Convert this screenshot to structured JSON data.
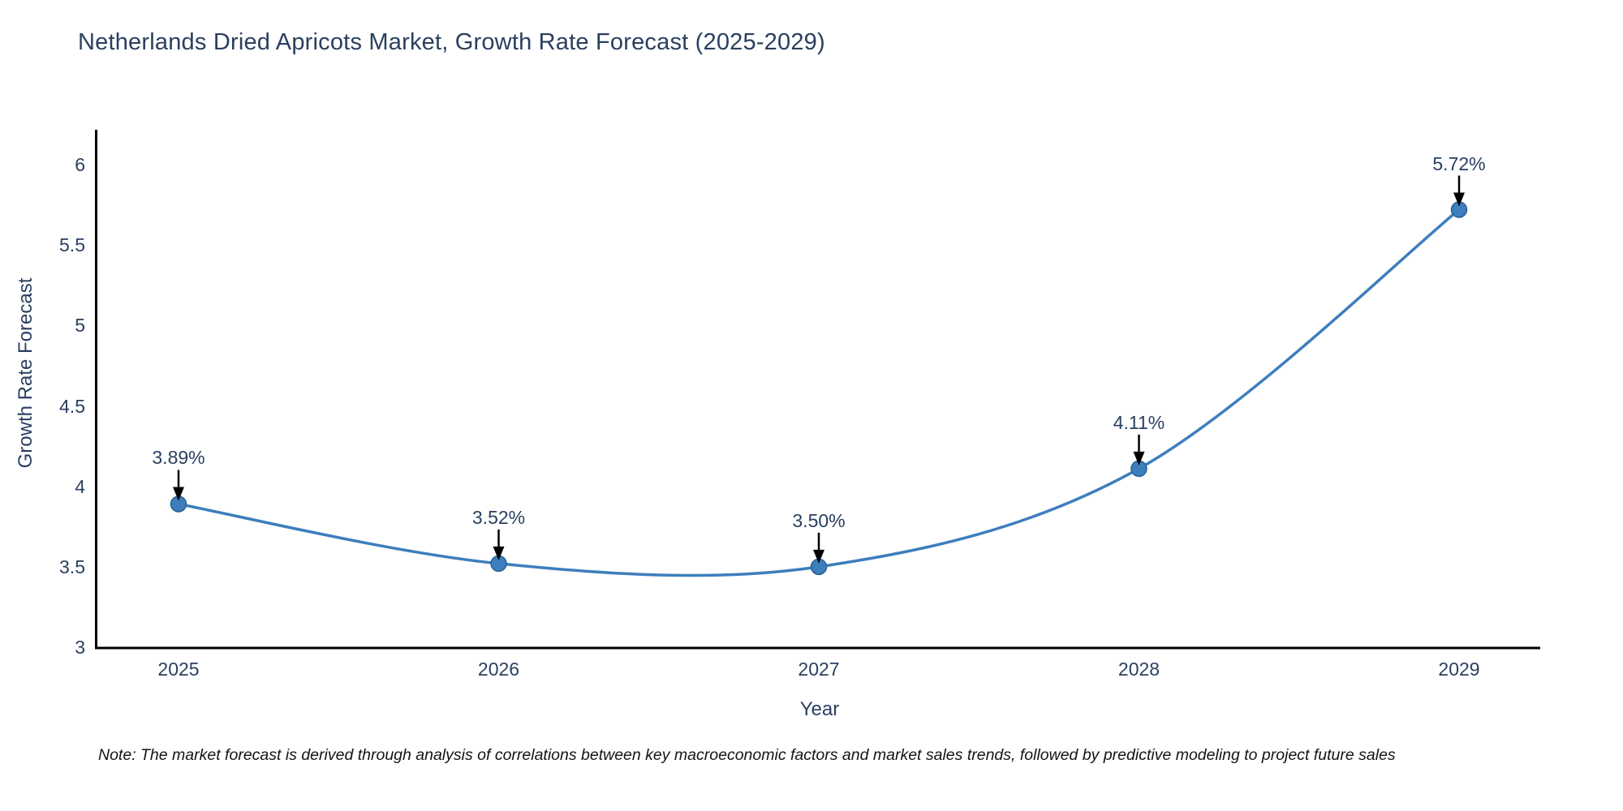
{
  "title": "Netherlands Dried Apricots Market, Growth Rate Forecast (2025-2029)",
  "note": "Note: The market forecast is derived through analysis of correlations between key macroeconomic factors and market sales trends, followed by predictive modeling to project future sales",
  "chart_data": {
    "type": "line",
    "title": "Netherlands Dried Apricots Market, Growth Rate Forecast (2025-2029)",
    "xlabel": "Year",
    "ylabel": "Growth Rate Forecast",
    "x": [
      2025,
      2026,
      2027,
      2028,
      2029
    ],
    "series": [
      {
        "name": "Growth Rate Forecast",
        "values": [
          3.89,
          3.52,
          3.5,
          4.11,
          5.72
        ]
      }
    ],
    "data_labels": [
      "3.89%",
      "3.52%",
      "3.50%",
      "4.11%",
      "5.72%"
    ],
    "x_tick_labels": [
      "2025",
      "2026",
      "2027",
      "2028",
      "2029"
    ],
    "y_tick_labels": [
      "3",
      "3.5",
      "4",
      "4.5",
      "5",
      "5.5",
      "6"
    ],
    "y_tick_values": [
      3,
      3.5,
      4,
      4.5,
      5,
      5.5,
      6
    ],
    "ylim": [
      3,
      6
    ],
    "grid": false,
    "line_shape": "spline",
    "legend": "none",
    "colors": {
      "line": "#3d7ebd",
      "marker_fill": "#3d7ebd",
      "marker_edge": "#2a6095",
      "annotation_arrow": "#000000",
      "text": "#2a3f5f",
      "axis_line": "#000000",
      "background": "#ffffff"
    }
  }
}
